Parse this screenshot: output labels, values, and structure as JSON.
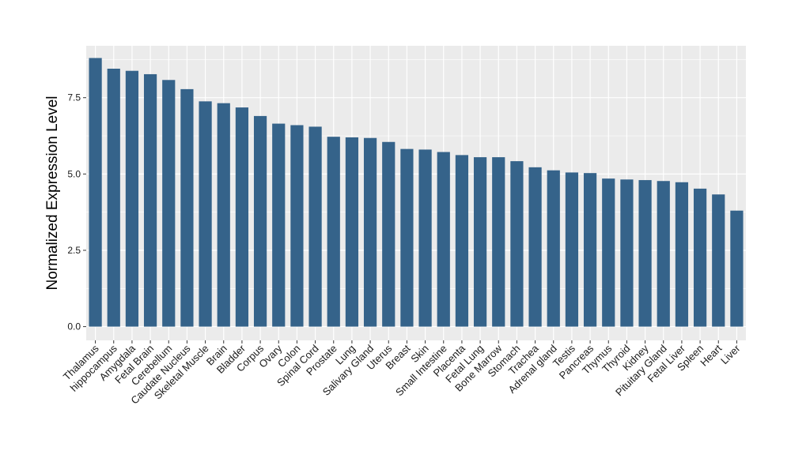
{
  "chart_data": {
    "type": "bar",
    "title": "",
    "xlabel": "",
    "ylabel": "Normalized Expression Level",
    "ylim": [
      -0.45,
      9.2
    ],
    "yticks": [
      0.0,
      2.5,
      5.0,
      7.5
    ],
    "ytick_labels": [
      "0.0",
      "2.5",
      "5.0",
      "7.5"
    ],
    "grid": true,
    "legend": "none",
    "bar_color": "#35638a",
    "panel_background": "#ebebeb",
    "grid_color": "#ffffff",
    "categories": [
      "Thalamus",
      "hippocampus",
      "Amygdala",
      "Fetal Brain",
      "Cerebellum",
      "Caudate Nucleus",
      "Skeletal Muscle",
      "Brain",
      "Bladder",
      "Corpus",
      "Ovary",
      "Colon",
      "Spinal Cord",
      "Prostate",
      "Lung",
      "Salivary Gland",
      "Uterus",
      "Breast",
      "Skin",
      "Small Intestine",
      "Placenta",
      "Fetal Lung",
      "Bone Marrow",
      "Stomach",
      "Trachea",
      "Adrenal gland",
      "Testis",
      "Pancreas",
      "Thymus",
      "Thyroid",
      "Kidney",
      "Pituitary Gland",
      "Fetal Liver",
      "Spleen",
      "Heart",
      "Liver"
    ],
    "values": [
      8.8,
      8.45,
      8.38,
      8.27,
      8.08,
      7.78,
      7.38,
      7.32,
      7.18,
      6.9,
      6.65,
      6.6,
      6.55,
      6.22,
      6.2,
      6.18,
      6.05,
      5.82,
      5.8,
      5.72,
      5.62,
      5.55,
      5.55,
      5.42,
      5.22,
      5.12,
      5.05,
      5.03,
      4.85,
      4.82,
      4.8,
      4.77,
      4.73,
      4.52,
      4.33,
      3.8
    ]
  }
}
